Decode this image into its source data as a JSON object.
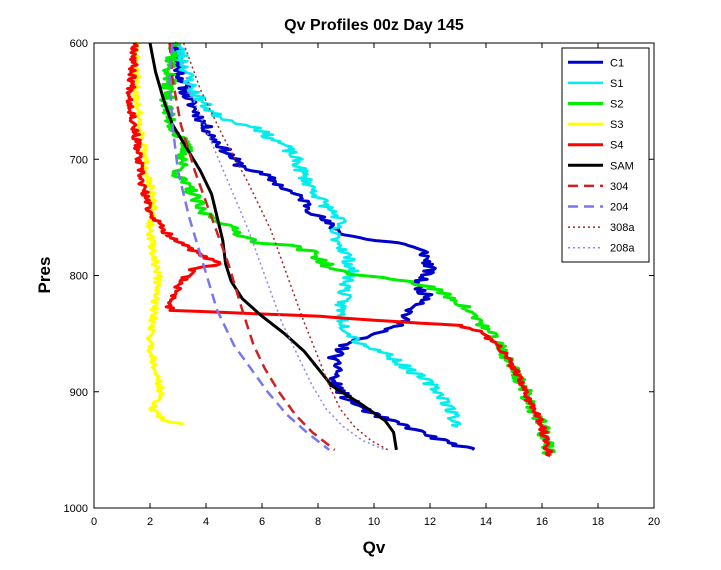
{
  "chart_data": {
    "type": "line",
    "title": "Qv Profiles 00z Day 145",
    "xlabel": "Qv",
    "ylabel": "Pres",
    "xlim": [
      0,
      20
    ],
    "ylim": [
      1000,
      600
    ],
    "y_reversed": true,
    "xticks": [
      "0",
      "2",
      "4",
      "6",
      "8",
      "10",
      "12",
      "14",
      "16",
      "18",
      "20"
    ],
    "yticks": [
      "600",
      "700",
      "800",
      "900",
      "1000"
    ],
    "grid": false,
    "legend_position": "top-right",
    "series": [
      {
        "name": "C1",
        "color": "#0000cc",
        "dash": "solid",
        "width": 3,
        "jitter": 0.22,
        "seed": 11,
        "x": [
          2.9,
          3.0,
          3.3,
          3.8,
          4.2,
          4.8,
          5.2,
          6.2,
          6.8,
          7.5,
          7.8,
          8.5,
          9.0,
          10.0,
          11.0,
          11.8,
          12.0,
          11.5,
          12.0,
          11.3,
          10.8,
          10.0,
          9.0,
          8.8,
          8.5,
          8.8,
          8.5,
          9.0,
          10.0,
          11.2,
          12.2,
          13.5
        ],
        "y": [
          600,
          620,
          645,
          665,
          680,
          695,
          705,
          715,
          725,
          735,
          745,
          758,
          765,
          770,
          772,
          780,
          795,
          808,
          820,
          830,
          845,
          850,
          858,
          865,
          873,
          880,
          890,
          905,
          920,
          930,
          940,
          950
        ]
      },
      {
        "name": "S1",
        "color": "#00eeee",
        "dash": "solid",
        "width": 2.5,
        "jitter": 0.25,
        "seed": 23,
        "x": [
          3.0,
          3.5,
          4.2,
          5.0,
          5.8,
          6.2,
          6.8,
          7.2,
          7.5,
          7.8,
          8.2,
          8.8,
          8.5,
          9.0,
          9.2,
          9.0,
          8.8,
          9.0,
          9.5,
          10.5,
          11.2,
          12.0,
          12.5,
          12.8,
          13.0
        ],
        "y": [
          600,
          640,
          660,
          668,
          672,
          680,
          688,
          700,
          715,
          725,
          738,
          752,
          762,
          780,
          795,
          810,
          830,
          845,
          858,
          868,
          880,
          893,
          905,
          918,
          930
        ]
      },
      {
        "name": "S2",
        "color": "#00ee00",
        "dash": "solid",
        "width": 3,
        "jitter": 0.25,
        "seed": 37,
        "x": [
          3.0,
          2.7,
          2.6,
          3.0,
          3.3,
          3.2,
          3.0,
          3.5,
          3.8,
          4.5,
          4.8,
          5.5,
          6.0,
          7.0,
          7.8,
          8.5,
          9.5,
          10.8,
          12.0,
          13.0,
          13.8,
          14.5,
          15.0,
          15.5,
          16.0,
          16.3
        ],
        "y": [
          600,
          620,
          660,
          680,
          690,
          700,
          715,
          728,
          745,
          752,
          758,
          768,
          772,
          774,
          780,
          795,
          800,
          803,
          810,
          822,
          840,
          862,
          880,
          905,
          930,
          955
        ]
      },
      {
        "name": "S3",
        "color": "#ffff00",
        "dash": "solid",
        "width": 3,
        "jitter": 0.12,
        "seed": 51,
        "x": [
          1.5,
          1.5,
          1.6,
          1.7,
          1.8,
          2.0,
          2.1,
          2.0,
          2.1,
          2.3,
          2.2,
          2.1,
          2.0,
          2.2,
          2.4,
          2.2,
          2.1,
          2.3,
          2.5,
          3.2
        ],
        "y": [
          600,
          640,
          660,
          680,
          700,
          720,
          740,
          760,
          780,
          800,
          820,
          840,
          860,
          880,
          900,
          910,
          915,
          920,
          925,
          928
        ]
      },
      {
        "name": "S4",
        "color": "#ff0000",
        "dash": "solid",
        "width": 3,
        "jitter": 0.14,
        "seed": 67,
        "x": [
          1.5,
          1.4,
          1.3,
          1.5,
          1.6,
          1.7,
          2.0,
          2.5,
          3.0,
          3.5,
          4.0,
          4.5,
          3.5,
          3.0,
          2.8,
          2.7,
          2.8,
          5.0,
          8.0,
          11.0,
          13.0,
          13.8,
          14.5,
          15.0,
          15.5,
          16.0,
          16.3
        ],
        "y": [
          600,
          620,
          650,
          680,
          700,
          720,
          745,
          762,
          770,
          778,
          785,
          790,
          795,
          810,
          820,
          827,
          830,
          832,
          835,
          840,
          843,
          848,
          862,
          880,
          905,
          930,
          955
        ]
      },
      {
        "name": "SAM",
        "color": "#000000",
        "dash": "solid",
        "width": 3,
        "jitter": 0,
        "seed": 0,
        "x": [
          2.0,
          2.2,
          2.5,
          2.8,
          3.3,
          3.8,
          4.2,
          4.4,
          4.6,
          4.7,
          4.9,
          5.3,
          6.0,
          6.8,
          7.5,
          8.0,
          8.5,
          9.5,
          10.4,
          10.7,
          10.8
        ],
        "y": [
          600,
          625,
          650,
          670,
          690,
          710,
          730,
          750,
          770,
          790,
          805,
          820,
          835,
          850,
          865,
          880,
          895,
          910,
          925,
          935,
          950
        ]
      },
      {
        "name": "304",
        "color": "#cc2222",
        "dash": "10,6",
        "width": 2.5,
        "jitter": 0,
        "seed": 0,
        "x": [
          2.7,
          2.8,
          3.1,
          3.6,
          4.2,
          4.8,
          5.3,
          5.7,
          6.1,
          6.6,
          7.2,
          7.8,
          8.6
        ],
        "y": [
          600,
          630,
          670,
          710,
          750,
          790,
          830,
          860,
          880,
          900,
          920,
          935,
          950
        ]
      },
      {
        "name": "204",
        "color": "#7777ee",
        "dash": "10,6",
        "width": 2.5,
        "jitter": 0,
        "seed": 0,
        "x": [
          2.8,
          2.7,
          2.8,
          3.0,
          3.4,
          3.9,
          4.4,
          5.0,
          5.6,
          6.2,
          6.9,
          7.6,
          8.4
        ],
        "y": [
          600,
          630,
          670,
          710,
          750,
          790,
          830,
          860,
          880,
          900,
          920,
          935,
          950
        ]
      },
      {
        "name": "308a",
        "color": "#aa2222",
        "dash": "2,3",
        "width": 1.5,
        "jitter": 0,
        "seed": 0,
        "x": [
          3.2,
          3.8,
          4.6,
          5.5,
          6.3,
          6.9,
          7.5,
          8.0,
          8.4,
          8.8,
          9.3,
          9.9,
          10.5
        ],
        "y": [
          600,
          640,
          680,
          720,
          760,
          800,
          840,
          870,
          895,
          915,
          930,
          942,
          950
        ]
      },
      {
        "name": "208a",
        "color": "#8888ee",
        "dash": "2,3",
        "width": 1.5,
        "jitter": 0,
        "seed": 0,
        "x": [
          3.0,
          3.4,
          4.1,
          4.8,
          5.5,
          6.1,
          6.7,
          7.3,
          7.8,
          8.3,
          8.9,
          9.6,
          10.4
        ],
        "y": [
          600,
          640,
          680,
          720,
          760,
          800,
          840,
          870,
          895,
          915,
          930,
          942,
          950
        ]
      }
    ]
  }
}
